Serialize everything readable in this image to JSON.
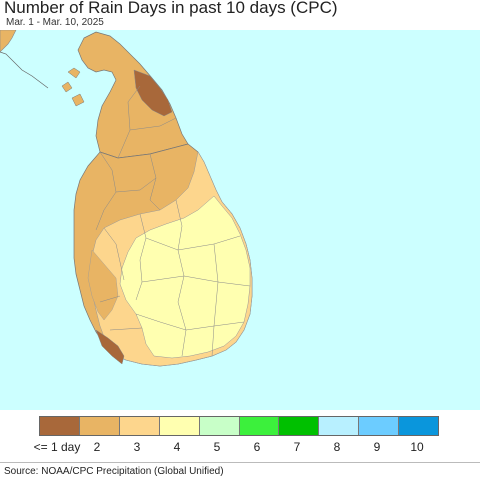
{
  "title": "Number of Rain Days in past 10 days (CPC)",
  "subtitle": "Mar. 1 - Mar. 10, 2025",
  "source": "Source: NOAA/CPC Precipitation (Global Unified)",
  "colors": {
    "sea": "#ccffff",
    "land_outside": "#ffffff",
    "border": "#888888"
  },
  "legend": {
    "items": [
      {
        "label": "<= 1 day",
        "color": "#a8683a"
      },
      {
        "label": "2",
        "color": "#e8b464"
      },
      {
        "label": "3",
        "color": "#fdd68d"
      },
      {
        "label": "4",
        "color": "#ffffb0"
      },
      {
        "label": "5",
        "color": "#c8ffc8"
      },
      {
        "label": "6",
        "color": "#3cf03c"
      },
      {
        "label": "7",
        "color": "#00c000"
      },
      {
        "label": "8",
        "color": "#b8f0ff"
      },
      {
        "label": "9",
        "color": "#6cccff"
      },
      {
        "label": "10",
        "color": "#0a96dc"
      }
    ]
  }
}
